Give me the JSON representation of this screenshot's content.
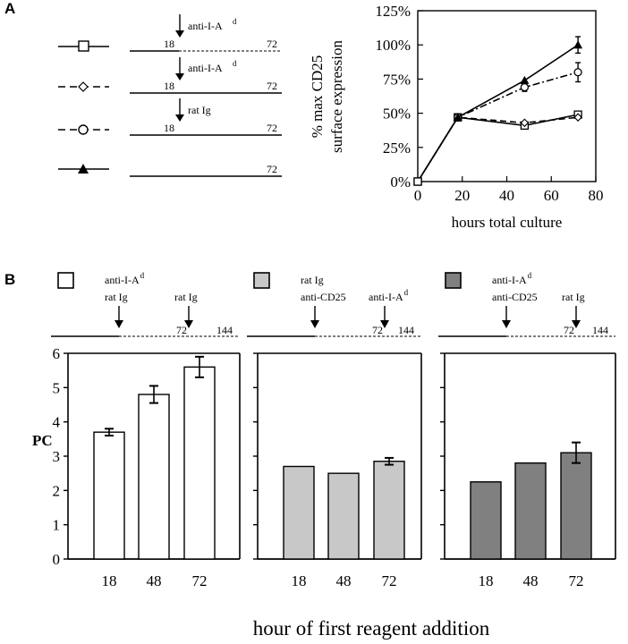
{
  "panel_a": {
    "label": "A",
    "schemes": [
      {
        "reagent": "anti-I-A",
        "superscript": "d",
        "start": "18",
        "end": "72",
        "dashed_after": true
      },
      {
        "reagent": "anti-I-A",
        "superscript": "d",
        "start": "18",
        "end": "72",
        "dashed_after": false
      },
      {
        "reagent": "rat Ig",
        "superscript": "",
        "start": "18",
        "end": "72",
        "dashed_after": false
      },
      {
        "reagent": "",
        "superscript": "",
        "start": "",
        "end": "72",
        "dashed_after": false
      }
    ]
  },
  "panel_b": {
    "label": "B",
    "y_label": "PC",
    "x_label": "hour of first reagent addition",
    "groups": [
      {
        "fill": "#ffffff",
        "first_reagent": [
          "anti-I-A",
          "rat Ig"
        ],
        "first_superscript": "d",
        "second_reagent": "rat Ig",
        "second_superscript": "",
        "t72": "72",
        "t144": "144"
      },
      {
        "fill": "#c8c8c8",
        "first_reagent": [
          "rat Ig",
          "anti-CD25"
        ],
        "first_superscript": "",
        "second_reagent": "anti-I-A",
        "second_superscript": "d",
        "t72": "72",
        "t144": "144"
      },
      {
        "fill": "#808080",
        "first_reagent": [
          "anti-I-A",
          "anti-CD25"
        ],
        "first_superscript": "d",
        "second_reagent": "rat Ig",
        "second_superscript": "",
        "t72": "72",
        "t144": "144"
      }
    ]
  },
  "chart_data": [
    {
      "type": "line",
      "panel": "A",
      "xlabel": "hours total culture",
      "ylabel": [
        "% max CD25",
        "surface expression"
      ],
      "xlim": [
        0,
        80
      ],
      "ylim": [
        0,
        125
      ],
      "x_ticks": [
        "0",
        "20",
        "40",
        "60",
        "80"
      ],
      "y_ticks": [
        "0%",
        "25%",
        "50%",
        "75%",
        "100%",
        "125%"
      ],
      "series": [
        {
          "marker": "square",
          "line": "solid",
          "x": [
            0,
            18,
            48,
            72
          ],
          "y": [
            0,
            47,
            41,
            49
          ],
          "err": [
            0,
            0,
            2,
            2
          ]
        },
        {
          "marker": "diamond",
          "line": "dashed",
          "x": [
            0,
            18,
            48,
            72
          ],
          "y": [
            0,
            47,
            43,
            47
          ],
          "err": [
            0,
            0,
            0,
            0
          ]
        },
        {
          "marker": "circle",
          "line": "dashdot",
          "x": [
            0,
            18,
            48,
            72
          ],
          "y": [
            0,
            47,
            69,
            80
          ],
          "err": [
            0,
            0,
            3,
            7
          ]
        },
        {
          "marker": "triangle",
          "line": "solid",
          "x": [
            0,
            18,
            48,
            72
          ],
          "y": [
            0,
            47,
            74,
            100
          ],
          "err": [
            0,
            0,
            0,
            6
          ]
        }
      ]
    },
    {
      "type": "bar",
      "panel": "B",
      "ylabel": "PC",
      "xlabel": "hour of first reagent addition",
      "ylim": [
        0,
        6
      ],
      "y_ticks": [
        "0",
        "1",
        "2",
        "3",
        "4",
        "5",
        "6"
      ],
      "categories": [
        "18",
        "48",
        "72"
      ],
      "series": [
        {
          "values": [
            3.7,
            4.8,
            5.6
          ],
          "err": [
            0.1,
            0.25,
            0.3
          ]
        },
        {
          "values": [
            2.7,
            2.5,
            2.85
          ],
          "err": [
            0,
            0,
            0.1
          ]
        },
        {
          "values": [
            2.25,
            2.8,
            3.1
          ],
          "err": [
            0,
            0,
            0.3
          ]
        }
      ]
    }
  ]
}
